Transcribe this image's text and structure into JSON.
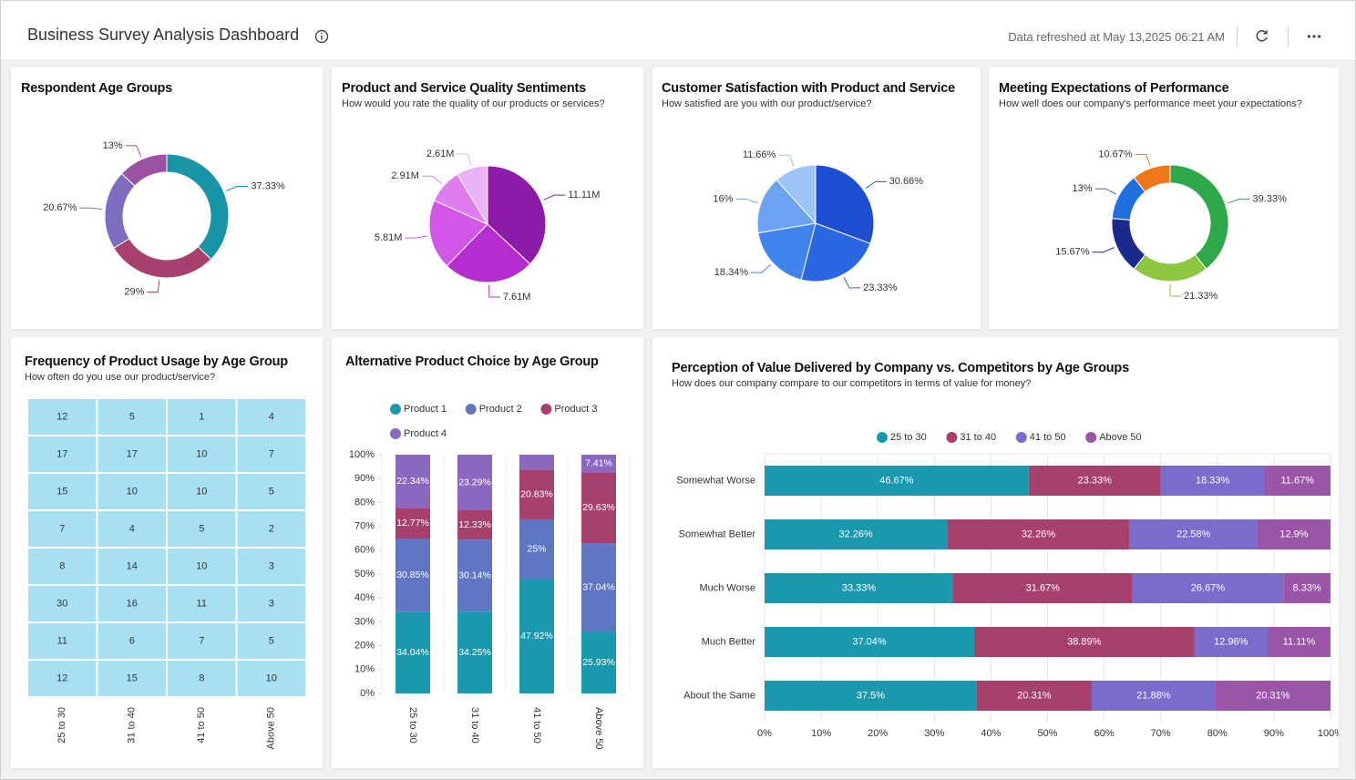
{
  "header": {
    "title": "Business Survey Analysis Dashboard",
    "refreshed": "Data refreshed at May 13,2025 06:21 AM"
  },
  "chart_data": [
    {
      "type": "donut",
      "title": "Respondent Age Groups",
      "values": [
        37.33,
        29,
        20.67,
        13
      ],
      "value_labels": [
        "37.33%",
        "29%",
        "20.67%",
        "13%"
      ],
      "colors": [
        "#1a95a8",
        "#a8416f",
        "#7d6cc0",
        "#9c52a3"
      ]
    },
    {
      "type": "pie",
      "title": "Product and Service Quality Sentiments",
      "subtitle": "How would you rate the quality of our products or services?",
      "values": [
        11.11,
        7.61,
        5.81,
        2.91,
        2.61
      ],
      "value_labels": [
        "11.11M",
        "7.61M",
        "5.81M",
        "2.91M",
        "2.61M"
      ],
      "colors": [
        "#8e1aa8",
        "#b52ccf",
        "#d257e6",
        "#e07cef",
        "#ebb2f5"
      ]
    },
    {
      "type": "pie",
      "title": "Customer Satisfaction with Product and Service",
      "subtitle": "How satisfied are you with our product/service?",
      "values": [
        30.66,
        23.33,
        18.34,
        16,
        11.66
      ],
      "value_labels": [
        "30.66%",
        "23.33%",
        "18.34%",
        "16%",
        "11.66%"
      ],
      "colors": [
        "#1f4fd1",
        "#2a68e2",
        "#4184ee",
        "#6ba3f2",
        "#9dc4f7"
      ]
    },
    {
      "type": "donut",
      "title": "Meeting Expectations of Performance",
      "subtitle": "How well does our company's performance meet your expectations?",
      "values": [
        39.33,
        21.33,
        15.67,
        13,
        10.67
      ],
      "value_labels": [
        "39.33%",
        "21.33%",
        "15.67%",
        "13%",
        "10.67%"
      ],
      "colors": [
        "#2ea84a",
        "#8dc63f",
        "#1a2a8c",
        "#1e6fe0",
        "#f07818"
      ]
    },
    {
      "type": "heatmap",
      "title": "Frequency of Product Usage by Age Group",
      "subtitle": "How often do you use our product/service?",
      "columns": [
        "25 to 30",
        "31 to 40",
        "41 to 50",
        "Above 50"
      ],
      "values": [
        [
          12,
          5,
          1,
          4
        ],
        [
          17,
          17,
          10,
          7
        ],
        [
          15,
          10,
          10,
          5
        ],
        [
          7,
          4,
          5,
          2
        ],
        [
          8,
          14,
          10,
          3
        ],
        [
          30,
          16,
          11,
          3
        ],
        [
          11,
          6,
          7,
          5
        ],
        [
          12,
          15,
          8,
          10
        ]
      ],
      "color": "#a8e0f3"
    },
    {
      "type": "stacked_bar",
      "title": "Alternative Product Choice by Age Group",
      "categories": [
        "25 to 30",
        "31 to 40",
        "41 to 50",
        "Above 50"
      ],
      "series": [
        {
          "name": "Product 1",
          "color": "#1a98ae",
          "values": [
            34.04,
            34.25,
            47.92,
            25.93
          ],
          "value_labels": [
            "34.04%",
            "34.25%",
            "47.92%",
            "25.93%"
          ]
        },
        {
          "name": "Product 2",
          "color": "#5e76c3",
          "values": [
            30.85,
            30.14,
            25,
            37.04
          ],
          "value_labels": [
            "30.85%",
            "30.14%",
            "25%",
            "37.04%"
          ]
        },
        {
          "name": "Product 3",
          "color": "#a8406e",
          "values": [
            12.77,
            12.33,
            20.83,
            29.63
          ],
          "value_labels": [
            "12.77%",
            "12.33%",
            "20.83%",
            "29.63%"
          ]
        },
        {
          "name": "Product 4",
          "color": "#8a68c0",
          "values": [
            22.34,
            23.29,
            6.25,
            7.41
          ],
          "value_labels": [
            "22.34%",
            "23.29%",
            null,
            "7.41%"
          ]
        }
      ],
      "ylim": [
        0,
        100
      ],
      "yticks": [
        {
          "value": 0,
          "label": "0%"
        },
        {
          "value": 10,
          "label": "10%"
        },
        {
          "value": 20,
          "label": "20%"
        },
        {
          "value": 30,
          "label": "30%"
        },
        {
          "value": 40,
          "label": "40%"
        },
        {
          "value": 50,
          "label": "50%"
        },
        {
          "value": 60,
          "label": "60%"
        },
        {
          "value": 70,
          "label": "70%"
        },
        {
          "value": 80,
          "label": "80%"
        },
        {
          "value": 90,
          "label": "90%"
        },
        {
          "value": 100,
          "label": "100%"
        }
      ],
      "legend": "top",
      "grid": false
    },
    {
      "type": "stacked_hbar",
      "title": "Perception of Value Delivered by Company vs. Competitors by Age Groups",
      "subtitle": "How does our company compare to our competitors in terms of value for money?",
      "categories": [
        "Somewhat Worse",
        "Somewhat Better",
        "Much Worse",
        "Much Better",
        "About the Same"
      ],
      "series": [
        {
          "name": "25 to 30",
          "color": "#1a98ae",
          "values": [
            46.67,
            32.26,
            33.33,
            37.04,
            37.5
          ],
          "value_labels": [
            "46.67%",
            "32.26%",
            "33.33%",
            "37.04%",
            "37.5%"
          ]
        },
        {
          "name": "31 to 40",
          "color": "#a8406e",
          "values": [
            23.33,
            32.26,
            31.67,
            38.89,
            20.31
          ],
          "value_labels": [
            "23.33%",
            "32.26%",
            "31.67%",
            "38.89%",
            "20.31%"
          ]
        },
        {
          "name": "41 to 50",
          "color": "#7a6ccc",
          "values": [
            18.33,
            22.58,
            26.67,
            12.96,
            21.88
          ],
          "value_labels": [
            "18.33%",
            "22.58%",
            "26.67%",
            "12.96%",
            "21.88%"
          ]
        },
        {
          "name": "Above 50",
          "color": "#9a54a8",
          "values": [
            11.67,
            12.9,
            8.33,
            11.11,
            20.31
          ],
          "value_labels": [
            "11.67%",
            "12.9%",
            "8.33%",
            "11.11%",
            "20.31%"
          ]
        }
      ],
      "xlim": [
        0,
        100
      ],
      "xticks": [
        {
          "value": 0,
          "label": "0%"
        },
        {
          "value": 10,
          "label": "10%"
        },
        {
          "value": 20,
          "label": "20%"
        },
        {
          "value": 30,
          "label": "30%"
        },
        {
          "value": 40,
          "label": "40%"
        },
        {
          "value": 50,
          "label": "50%"
        },
        {
          "value": 60,
          "label": "60%"
        },
        {
          "value": 70,
          "label": "70%"
        },
        {
          "value": 80,
          "label": "80%"
        },
        {
          "value": 90,
          "label": "90%"
        },
        {
          "value": 100,
          "label": "100%"
        }
      ],
      "legend": "top",
      "grid": true
    }
  ]
}
